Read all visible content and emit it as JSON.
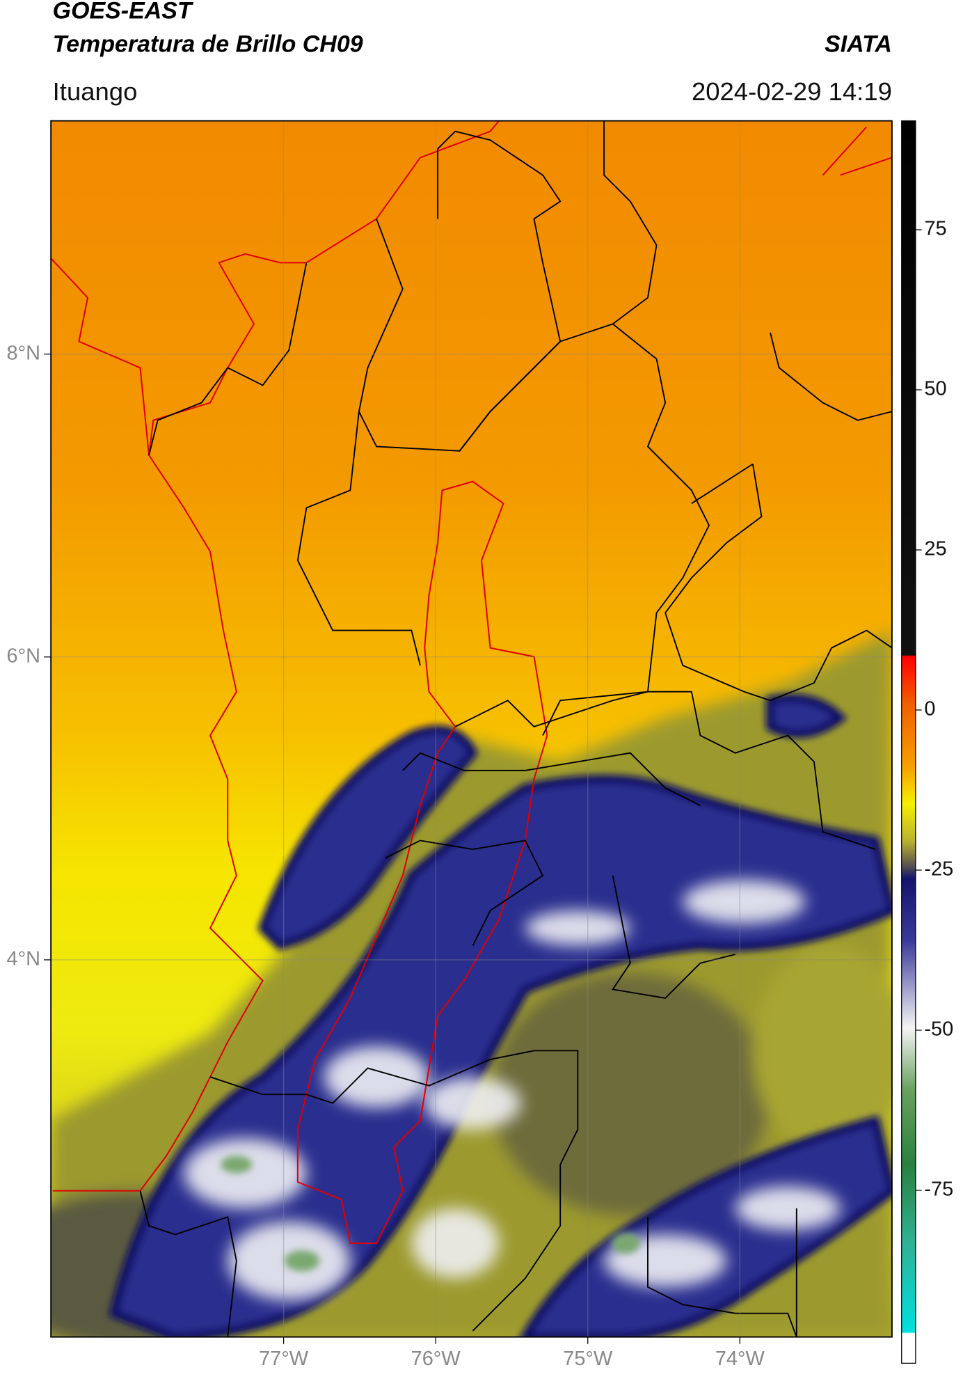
{
  "header": {
    "title": "GOES-EAST",
    "subtitle": "Temperatura de Brillo CH09",
    "brand": "SIATA",
    "location": "Ituango",
    "datetime": "2024-02-29 14:19"
  },
  "map": {
    "xlim": [
      -78.53,
      -73.0
    ],
    "ylim": [
      1.51,
      9.54
    ],
    "xticks": [
      {
        "value": -77,
        "label": "77°W"
      },
      {
        "value": -76,
        "label": "76°W"
      },
      {
        "value": -75,
        "label": "75°W"
      },
      {
        "value": -74,
        "label": "74°W"
      }
    ],
    "yticks": [
      {
        "value": 4,
        "label": "4°N"
      },
      {
        "value": 6,
        "label": "6°N"
      },
      {
        "value": 8,
        "label": "8°N"
      }
    ],
    "grid": true
  },
  "colorbar": {
    "lim": [
      -102,
      92
    ],
    "ticks": [
      -75,
      -50,
      -25,
      0,
      25,
      50,
      75
    ]
  }
}
